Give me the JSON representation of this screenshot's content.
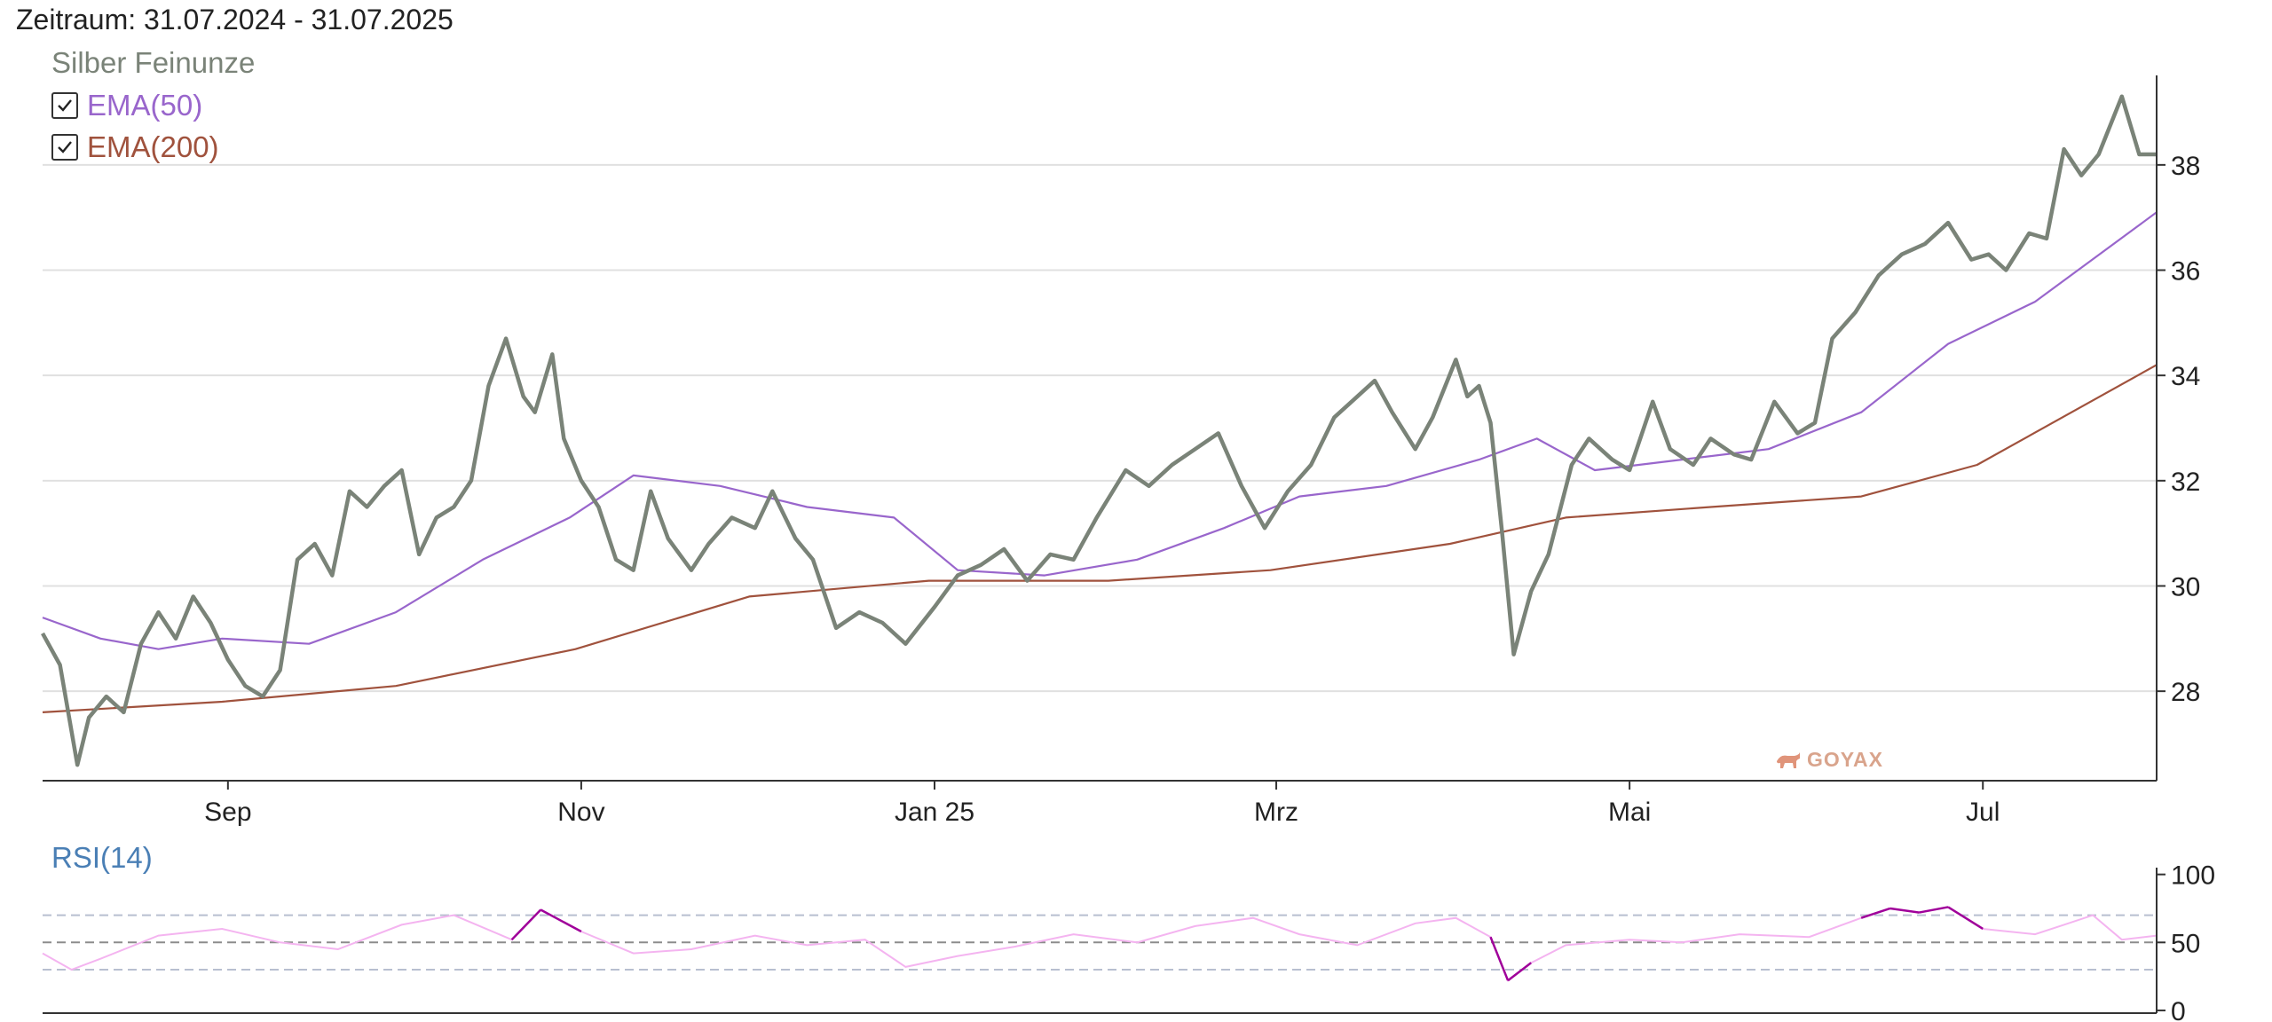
{
  "header": {
    "title": "Zeitraum: 31.07.2024 - 31.07.2025"
  },
  "legend": {
    "main_series": "Silber Feinunze",
    "items": [
      {
        "label": "EMA(50)",
        "checked": true,
        "color": "#9966cc"
      },
      {
        "label": "EMA(200)",
        "checked": true,
        "color": "#a0523d"
      }
    ]
  },
  "rsi_label": "RSI(14)",
  "logo_text": "GOYAX",
  "colors": {
    "price": "#7a8378",
    "ema50": "#9966cc",
    "ema200": "#a0523d",
    "rsi": "#f4b4f0",
    "rsi_extreme": "#a0009a",
    "grid": "#e0e0e0",
    "axis": "#333333",
    "rsi_band": "#b8bfd0",
    "rsi_mid": "#8c8c8c",
    "rsi_label": "#4a7fb5"
  },
  "chart_data": [
    {
      "type": "line",
      "title": "Zeitraum: 31.07.2024 - 31.07.2025",
      "x_tick_labels": [
        "Sep",
        "Nov",
        "Jan 25",
        "Mrz",
        "Mai",
        "Jul"
      ],
      "x_tick_dates": [
        "2024-09-01",
        "2024-11-01",
        "2025-01-01",
        "2025-03-01",
        "2025-05-01",
        "2025-07-01"
      ],
      "x_range": [
        "2024-07-31",
        "2025-07-31"
      ],
      "y_ticks": [
        28,
        30,
        32,
        34,
        36,
        38
      ],
      "ylim": [
        26.3,
        39.7
      ],
      "y_axis_side": "right",
      "grid": "horizontal",
      "series": [
        {
          "name": "Silber Feinunze",
          "x": [
            "2024-07-31",
            "2024-08-03",
            "2024-08-06",
            "2024-08-08",
            "2024-08-11",
            "2024-08-14",
            "2024-08-17",
            "2024-08-20",
            "2024-08-23",
            "2024-08-26",
            "2024-08-29",
            "2024-09-01",
            "2024-09-04",
            "2024-09-07",
            "2024-09-10",
            "2024-09-13",
            "2024-09-16",
            "2024-09-19",
            "2024-09-22",
            "2024-09-25",
            "2024-09-28",
            "2024-10-01",
            "2024-10-04",
            "2024-10-07",
            "2024-10-10",
            "2024-10-13",
            "2024-10-16",
            "2024-10-19",
            "2024-10-22",
            "2024-10-24",
            "2024-10-27",
            "2024-10-29",
            "2024-11-01",
            "2024-11-04",
            "2024-11-07",
            "2024-11-10",
            "2024-11-13",
            "2024-11-16",
            "2024-11-20",
            "2024-11-23",
            "2024-11-27",
            "2024-12-01",
            "2024-12-04",
            "2024-12-08",
            "2024-12-11",
            "2024-12-15",
            "2024-12-19",
            "2024-12-23",
            "2024-12-27",
            "2025-01-01",
            "2025-01-05",
            "2025-01-09",
            "2025-01-13",
            "2025-01-17",
            "2025-01-21",
            "2025-01-25",
            "2025-01-29",
            "2025-02-03",
            "2025-02-07",
            "2025-02-11",
            "2025-02-15",
            "2025-02-19",
            "2025-02-23",
            "2025-02-27",
            "2025-03-03",
            "2025-03-07",
            "2025-03-11",
            "2025-03-14",
            "2025-03-18",
            "2025-03-21",
            "2025-03-25",
            "2025-03-28",
            "2025-04-01",
            "2025-04-03",
            "2025-04-05",
            "2025-04-07",
            "2025-04-09",
            "2025-04-11",
            "2025-04-14",
            "2025-04-17",
            "2025-04-21",
            "2025-04-24",
            "2025-04-28",
            "2025-05-01",
            "2025-05-05",
            "2025-05-08",
            "2025-05-12",
            "2025-05-15",
            "2025-05-19",
            "2025-05-22",
            "2025-05-26",
            "2025-05-30",
            "2025-06-02",
            "2025-06-05",
            "2025-06-09",
            "2025-06-13",
            "2025-06-17",
            "2025-06-21",
            "2025-06-25",
            "2025-06-29",
            "2025-07-02",
            "2025-07-05",
            "2025-07-09",
            "2025-07-12",
            "2025-07-15",
            "2025-07-18",
            "2025-07-21",
            "2025-07-25",
            "2025-07-28",
            "2025-07-31"
          ],
          "values": [
            29.1,
            28.5,
            26.6,
            27.5,
            27.9,
            27.6,
            28.9,
            29.5,
            29.0,
            29.8,
            29.3,
            28.6,
            28.1,
            27.9,
            28.4,
            30.5,
            30.8,
            30.2,
            31.8,
            31.5,
            31.9,
            32.2,
            30.6,
            31.3,
            31.5,
            32.0,
            33.8,
            34.7,
            33.6,
            33.3,
            34.4,
            32.8,
            32.0,
            31.5,
            30.5,
            30.3,
            31.8,
            30.9,
            30.3,
            30.8,
            31.3,
            31.1,
            31.8,
            30.9,
            30.5,
            29.2,
            29.5,
            29.3,
            28.9,
            29.6,
            30.2,
            30.4,
            30.7,
            30.1,
            30.6,
            30.5,
            31.3,
            32.2,
            31.9,
            32.3,
            32.6,
            32.9,
            31.9,
            31.1,
            31.8,
            32.3,
            33.2,
            33.5,
            33.9,
            33.3,
            32.6,
            33.2,
            34.3,
            33.6,
            33.8,
            33.1,
            31.0,
            28.7,
            29.9,
            30.6,
            32.3,
            32.8,
            32.4,
            32.2,
            33.5,
            32.6,
            32.3,
            32.8,
            32.5,
            32.4,
            33.5,
            32.9,
            33.1,
            34.7,
            35.2,
            35.9,
            36.3,
            36.5,
            36.9,
            36.2,
            36.3,
            36.0,
            36.7,
            36.6,
            38.3,
            37.8,
            38.2,
            39.3,
            38.2,
            38.2
          ]
        },
        {
          "name": "EMA(50)",
          "x": [
            "2024-07-31",
            "2024-08-10",
            "2024-08-20",
            "2024-08-31",
            "2024-09-15",
            "2024-09-30",
            "2024-10-15",
            "2024-10-30",
            "2024-11-10",
            "2024-11-25",
            "2024-12-10",
            "2024-12-25",
            "2025-01-05",
            "2025-01-20",
            "2025-02-05",
            "2025-02-20",
            "2025-03-05",
            "2025-03-20",
            "2025-04-05",
            "2025-04-15",
            "2025-04-25",
            "2025-05-10",
            "2025-05-25",
            "2025-06-10",
            "2025-06-25",
            "2025-07-10",
            "2025-07-31"
          ],
          "values": [
            29.4,
            29.0,
            28.8,
            29.0,
            28.9,
            29.5,
            30.5,
            31.3,
            32.1,
            31.9,
            31.5,
            31.3,
            30.3,
            30.2,
            30.5,
            31.1,
            31.7,
            31.9,
            32.4,
            32.8,
            32.2,
            32.4,
            32.6,
            33.3,
            34.6,
            35.4,
            37.1
          ]
        },
        {
          "name": "EMA(200)",
          "x": [
            "2024-07-31",
            "2024-08-31",
            "2024-09-30",
            "2024-10-31",
            "2024-11-30",
            "2024-12-31",
            "2025-01-31",
            "2025-02-28",
            "2025-03-31",
            "2025-04-20",
            "2025-05-15",
            "2025-06-10",
            "2025-06-30",
            "2025-07-31"
          ],
          "values": [
            27.6,
            27.8,
            28.1,
            28.8,
            29.8,
            30.1,
            30.1,
            30.3,
            30.8,
            31.3,
            31.5,
            31.7,
            32.3,
            34.2
          ]
        }
      ]
    },
    {
      "type": "line",
      "title": "RSI(14)",
      "y_ticks": [
        0,
        50,
        100
      ],
      "ylim": [
        -2,
        105
      ],
      "reference_lines": [
        30,
        50,
        70
      ],
      "series": [
        {
          "name": "RSI(14)",
          "x": [
            "2024-07-31",
            "2024-08-05",
            "2024-08-10",
            "2024-08-20",
            "2024-08-31",
            "2024-09-10",
            "2024-09-20",
            "2024-10-01",
            "2024-10-10",
            "2024-10-20",
            "2024-10-25",
            "2024-11-01",
            "2024-11-10",
            "2024-11-20",
            "2024-12-01",
            "2024-12-10",
            "2024-12-20",
            "2024-12-27",
            "2025-01-05",
            "2025-01-15",
            "2025-01-25",
            "2025-02-05",
            "2025-02-15",
            "2025-02-25",
            "2025-03-05",
            "2025-03-15",
            "2025-03-25",
            "2025-04-01",
            "2025-04-07",
            "2025-04-10",
            "2025-04-14",
            "2025-04-20",
            "2025-05-01",
            "2025-05-10",
            "2025-05-20",
            "2025-06-01",
            "2025-06-10",
            "2025-06-15",
            "2025-06-20",
            "2025-06-25",
            "2025-07-01",
            "2025-07-10",
            "2025-07-15",
            "2025-07-20",
            "2025-07-25",
            "2025-07-31"
          ],
          "values": [
            42,
            30,
            38,
            55,
            60,
            50,
            45,
            63,
            70,
            52,
            74,
            58,
            42,
            45,
            55,
            48,
            52,
            32,
            40,
            47,
            56,
            50,
            62,
            68,
            56,
            48,
            64,
            68,
            54,
            22,
            35,
            48,
            52,
            50,
            56,
            54,
            68,
            75,
            72,
            76,
            60,
            56,
            63,
            70,
            52,
            55
          ]
        }
      ]
    }
  ]
}
